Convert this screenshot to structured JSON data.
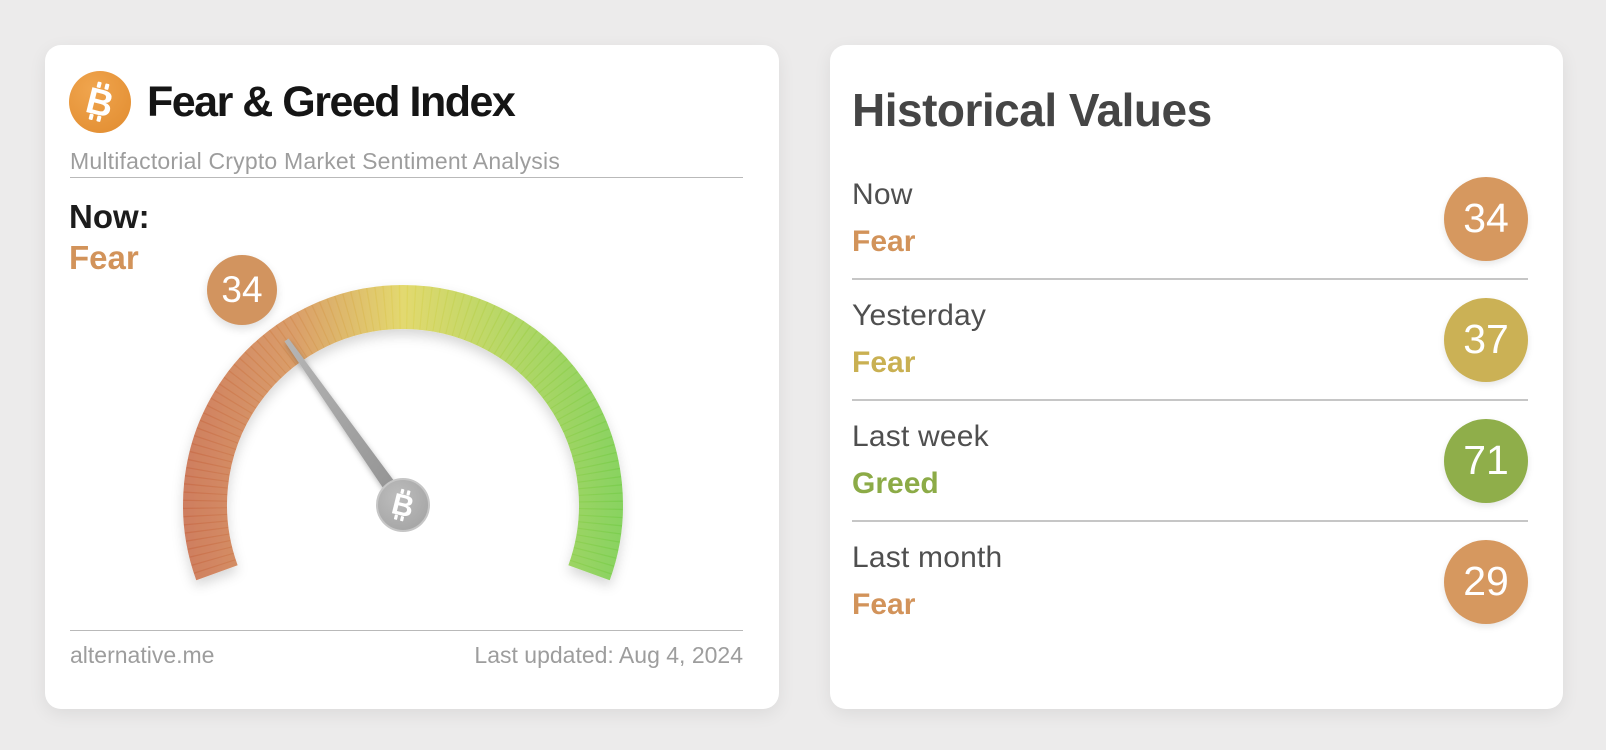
{
  "page": {
    "background_color": "#ecebeb"
  },
  "fear_greed_card": {
    "title": "Fear & Greed Index",
    "subtitle": "Multifactorial Crypto Market Sentiment Analysis",
    "now_label": "Now:",
    "now_classification": "Fear",
    "now_classification_color": "#d2935a",
    "source_link": "alternative.me",
    "last_updated": "Last updated: Aug 4, 2024",
    "bitcoin_icon_color": "#e9983d"
  },
  "historical_card": {
    "title": "Historical Values",
    "rows": [
      {
        "label": "Now",
        "classification": "Fear",
        "value": 34,
        "text_color": "#d2935a",
        "badge_color": "#d6985f"
      },
      {
        "label": "Yesterday",
        "classification": "Fear",
        "value": 37,
        "text_color": "#c9b052",
        "badge_color": "#cbb155"
      },
      {
        "label": "Last week",
        "classification": "Greed",
        "value": 71,
        "text_color": "#8cab47",
        "badge_color": "#8fae4a"
      },
      {
        "label": "Last month",
        "classification": "Fear",
        "value": 29,
        "text_color": "#d2935a",
        "badge_color": "#d6985f"
      }
    ]
  },
  "chart_data": {
    "type": "gauge",
    "title": "Fear & Greed Index",
    "value": 34,
    "classification": "Fear",
    "min": 0,
    "max": 100,
    "start_angle_deg": 200,
    "end_angle_deg": -20,
    "arc_colors": [
      "#c96f4e",
      "#d6935a",
      "#e0d55f",
      "#abd356",
      "#7bce50"
    ],
    "needle_color_dark": "#8e8e8e",
    "needle_color_light": "#b3b3b3",
    "hub_color": "#ababab",
    "value_badge_color": "#d2945f",
    "historical": [
      {
        "label": "Now",
        "value": 34,
        "classification": "Fear"
      },
      {
        "label": "Yesterday",
        "value": 37,
        "classification": "Fear"
      },
      {
        "label": "Last week",
        "value": 71,
        "classification": "Greed"
      },
      {
        "label": "Last month",
        "value": 29,
        "classification": "Fear"
      }
    ]
  }
}
